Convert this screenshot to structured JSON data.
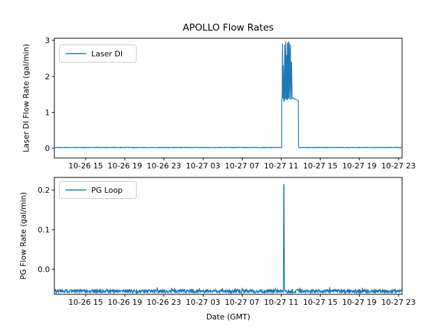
{
  "figure": {
    "title": "APOLLO Flow Rates",
    "xlabel": "Date (GMT)",
    "background": "#ffffff",
    "line_color": "#1f77b4"
  },
  "x_axis": {
    "tick_labels": [
      "10-26 15",
      "10-26 19",
      "10-26 23",
      "10-27 03",
      "10-27 07",
      "10-27 11",
      "10-27 15",
      "10-27 19",
      "10-27 23"
    ],
    "tick_hours": [
      0,
      4,
      8,
      12,
      16,
      20,
      24,
      28,
      32
    ],
    "range_hours": [
      -3.21,
      32.37
    ],
    "time_origin_label": "10-26 15:00 GMT"
  },
  "chart_data": [
    {
      "type": "line",
      "series_name": "Laser DI",
      "legend_label": "Laser DI",
      "ylabel": "Laser DI Flow Rate (gal/min)",
      "ytick_labels": [
        "0",
        "1",
        "2",
        "3"
      ],
      "ytick_values": [
        0,
        1,
        2,
        3
      ],
      "ylim": [
        -0.27,
        3.06
      ],
      "baseline_value": 0.02,
      "noise_amplitude": 0.008,
      "event_keypoints": [
        [
          20.05,
          0.02
        ],
        [
          20.06,
          1.32
        ],
        [
          20.1,
          1.45
        ],
        [
          20.13,
          2.9
        ],
        [
          20.17,
          1.4
        ],
        [
          20.22,
          2.3
        ],
        [
          20.26,
          1.32
        ],
        [
          20.3,
          1.3
        ],
        [
          20.36,
          2.87
        ],
        [
          20.4,
          1.35
        ],
        [
          20.46,
          2.95
        ],
        [
          20.5,
          1.38
        ],
        [
          20.55,
          2.58
        ],
        [
          20.59,
          1.35
        ],
        [
          20.64,
          2.92
        ],
        [
          20.68,
          1.36
        ],
        [
          20.73,
          2.97
        ],
        [
          20.77,
          1.4
        ],
        [
          20.83,
          2.93
        ],
        [
          20.88,
          1.38
        ],
        [
          20.94,
          2.88
        ],
        [
          21.0,
          1.36
        ],
        [
          21.06,
          2.4
        ],
        [
          21.12,
          1.38
        ],
        [
          21.2,
          1.4
        ],
        [
          21.35,
          1.37
        ],
        [
          21.5,
          1.35
        ],
        [
          21.65,
          1.34
        ],
        [
          21.76,
          1.33
        ],
        [
          21.78,
          0.02
        ]
      ]
    },
    {
      "type": "line",
      "series_name": "PG Loop",
      "legend_label": "PG Loop",
      "ylabel": "PG Flow Rate (gal/min)",
      "ytick_labels": [
        "0.0",
        "0.1",
        "0.2"
      ],
      "ytick_values": [
        0.0,
        0.1,
        0.2
      ],
      "ylim": [
        -0.063,
        0.232
      ],
      "baseline_value": -0.055,
      "noise_amplitude": 0.005,
      "event_keypoints": [
        [
          20.22,
          -0.055
        ],
        [
          20.24,
          0.078
        ],
        [
          20.26,
          0.215
        ],
        [
          20.29,
          0.212
        ],
        [
          20.31,
          0.08
        ],
        [
          20.33,
          -0.02
        ],
        [
          20.36,
          -0.055
        ]
      ]
    }
  ]
}
